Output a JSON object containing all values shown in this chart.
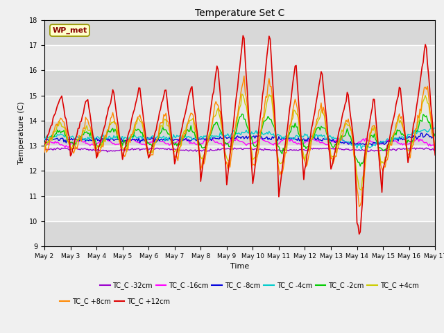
{
  "title": "Temperature Set C",
  "xlabel": "Time",
  "ylabel": "Temperature (C)",
  "ylim": [
    9.0,
    18.0
  ],
  "yticks": [
    9.0,
    10.0,
    11.0,
    12.0,
    13.0,
    14.0,
    15.0,
    16.0,
    17.0,
    18.0
  ],
  "series_order": [
    "TC_C -32cm",
    "TC_C -16cm",
    "TC_C -8cm",
    "TC_C -4cm",
    "TC_C -2cm",
    "TC_C +4cm",
    "TC_C +8cm",
    "TC_C +12cm"
  ],
  "series": {
    "TC_C -32cm": {
      "color": "#9900cc",
      "lw": 1.0,
      "zorder": 2
    },
    "TC_C -16cm": {
      "color": "#ff00ff",
      "lw": 1.0,
      "zorder": 3
    },
    "TC_C -8cm": {
      "color": "#0000dd",
      "lw": 1.0,
      "zorder": 4
    },
    "TC_C -4cm": {
      "color": "#00cccc",
      "lw": 1.0,
      "zorder": 5
    },
    "TC_C -2cm": {
      "color": "#00cc00",
      "lw": 1.0,
      "zorder": 6
    },
    "TC_C +4cm": {
      "color": "#cccc00",
      "lw": 1.0,
      "zorder": 7
    },
    "TC_C +8cm": {
      "color": "#ff8800",
      "lw": 1.0,
      "zorder": 8
    },
    "TC_C +12cm": {
      "color": "#dd0000",
      "lw": 1.2,
      "zorder": 9
    }
  },
  "wp_met_box": {
    "text": "WP_met",
    "facecolor": "#ffffcc",
    "edgecolor": "#999900",
    "textcolor": "#880000"
  },
  "xtick_labels": [
    "May 2",
    "May 3",
    "May 4",
    "May 5",
    "May 6",
    "May 7",
    "May 8",
    "May 9",
    "May 10",
    "May 11",
    "May 12",
    "May 13",
    "May 14",
    "May 15",
    "May 16",
    "May 17"
  ],
  "figsize": [
    6.4,
    4.8
  ],
  "dpi": 100
}
